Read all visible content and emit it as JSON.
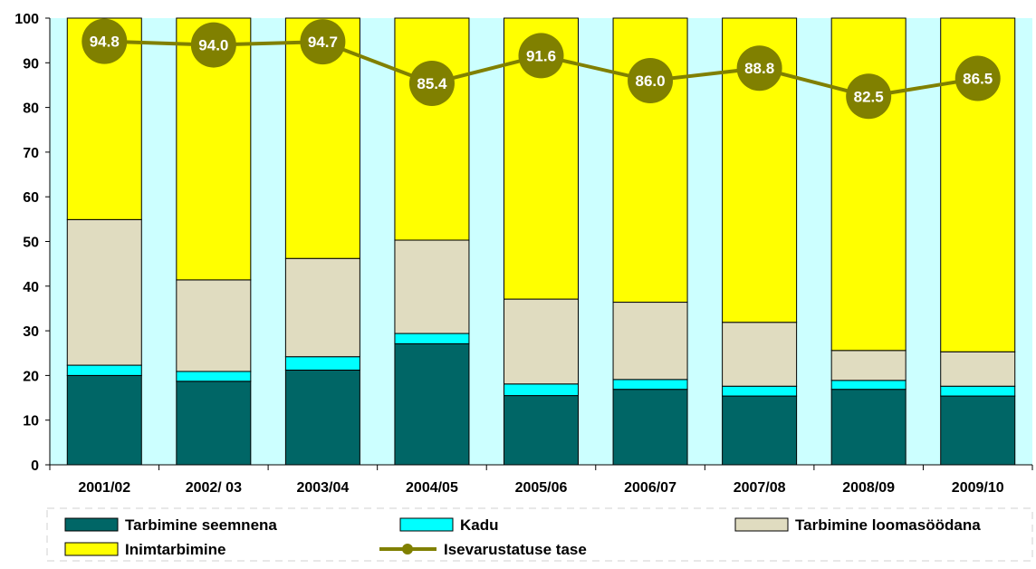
{
  "chart_data": {
    "type": "bar",
    "stacked": true,
    "title": "",
    "xlabel": "",
    "ylabel": "",
    "ylim": [
      0,
      100
    ],
    "yticks": [
      0,
      10,
      20,
      30,
      40,
      50,
      60,
      70,
      80,
      90,
      100
    ],
    "grid": false,
    "legend_position": "bottom",
    "categories": [
      "2001/02",
      "2002/ 03",
      "2003/04",
      "2004/05",
      "2005/06",
      "2006/07",
      "2007/08",
      "2008/09",
      "2009/10"
    ],
    "series": [
      {
        "name": "Tarbimine seemnena",
        "color": "#006666",
        "values": [
          20.0,
          18.7,
          21.2,
          27.1,
          15.5,
          16.9,
          15.4,
          16.9,
          15.4
        ]
      },
      {
        "name": "Kadu",
        "color": "#00ffff",
        "values": [
          2.3,
          2.2,
          3.0,
          2.3,
          2.6,
          2.2,
          2.2,
          2.0,
          2.2
        ]
      },
      {
        "name": "Tarbimine loomasöödana",
        "color": "#e0dcc0",
        "values": [
          32.6,
          20.5,
          22.0,
          20.9,
          19.0,
          17.3,
          14.3,
          6.7,
          7.7
        ]
      },
      {
        "name": "Inimtarbimine",
        "color": "#ffff00",
        "values": [
          45.1,
          58.6,
          53.8,
          49.7,
          62.9,
          63.6,
          68.1,
          74.4,
          74.7
        ]
      }
    ],
    "line_series": {
      "name": "Isevarustatuse tase",
      "color": "#808000",
      "values": [
        94.8,
        94.0,
        94.7,
        85.4,
        91.6,
        86.0,
        88.8,
        82.5,
        86.5
      ],
      "labels": [
        "94.8",
        "94.0",
        "94.7",
        "85.4",
        "91.6",
        "86.0",
        "88.8",
        "82.5",
        "86.5"
      ]
    },
    "plot_background": "#ccffff"
  }
}
